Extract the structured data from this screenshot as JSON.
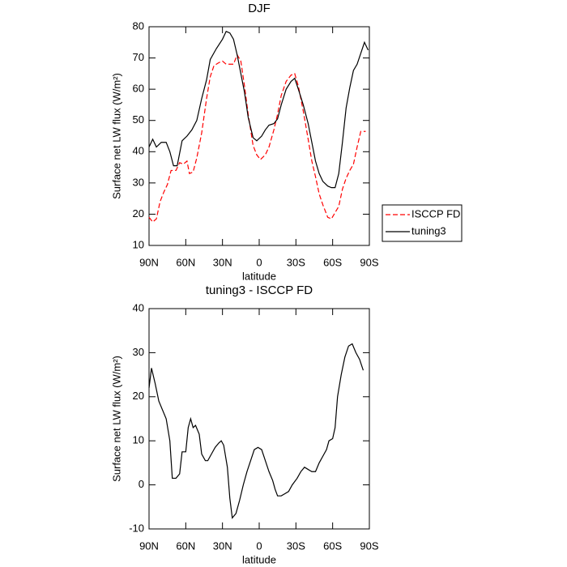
{
  "chart_data": [
    {
      "type": "line",
      "title": "DJF",
      "xlabel": "latitude",
      "ylabel": "Surface net LW flux (W/m²)",
      "xlim": [
        90,
        -90
      ],
      "xticks": [
        {
          "value": 90,
          "label": "90N"
        },
        {
          "value": 60,
          "label": "60N"
        },
        {
          "value": 30,
          "label": "30N"
        },
        0,
        {
          "value": -30,
          "label": "30S"
        },
        {
          "value": -60,
          "label": "60S"
        },
        {
          "value": -90,
          "label": "90S"
        }
      ],
      "ylim": [
        10,
        80
      ],
      "yticks": [
        10,
        20,
        30,
        40,
        50,
        60,
        70,
        80
      ],
      "legend": "right",
      "series": [
        {
          "name": "ISCCP FD",
          "color": "#ff0000",
          "style": "dashed",
          "x": [
            90,
            87,
            84,
            81,
            78,
            75,
            72,
            68,
            65,
            62,
            59,
            57,
            54,
            51,
            47,
            43,
            40,
            37,
            33,
            30,
            27,
            24,
            21,
            18,
            15,
            12,
            9,
            5,
            2,
            -1,
            -5,
            -8,
            -12,
            -15,
            -18,
            -22,
            -26,
            -29,
            -32,
            -36,
            -40,
            -43,
            -46,
            -49,
            -52,
            -56,
            -59,
            -62,
            -65,
            -68,
            -71,
            -74,
            -77,
            -80,
            -83,
            -87
          ],
          "values": [
            19,
            17.5,
            18.5,
            24,
            27,
            29.5,
            34,
            34,
            36.5,
            36,
            37,
            33,
            33.5,
            38,
            46,
            57,
            64,
            67.5,
            68.5,
            69,
            68,
            68,
            68,
            71,
            69,
            61,
            52,
            42,
            39,
            37.5,
            39,
            41.5,
            47,
            52,
            58,
            62.5,
            64.5,
            65,
            61,
            53,
            44,
            37,
            32,
            26.5,
            23,
            19,
            18.5,
            20.5,
            22.5,
            28,
            31.5,
            34,
            36,
            41.5,
            46.5,
            46.5
          ]
        },
        {
          "name": "tuning3",
          "color": "#000000",
          "style": "solid",
          "x": [
            90,
            87,
            84,
            80,
            76,
            73,
            70,
            67,
            63,
            59,
            55,
            51,
            47,
            43,
            40,
            35,
            30,
            27,
            24,
            21,
            18,
            15,
            12,
            9,
            5,
            2,
            -2,
            -5,
            -8,
            -12,
            -15,
            -18,
            -22,
            -26,
            -29,
            -32,
            -36,
            -40,
            -43,
            -46,
            -49,
            -52,
            -56,
            -59,
            -62,
            -65,
            -68,
            -71,
            -74,
            -77,
            -80,
            -83,
            -86,
            -89
          ],
          "values": [
            41.5,
            44,
            41.5,
            43,
            43,
            40,
            35.5,
            35.5,
            43.5,
            45,
            47,
            50,
            57,
            63,
            69.5,
            73,
            76,
            78.5,
            78,
            76,
            71,
            65,
            59,
            51,
            44.5,
            43.5,
            45,
            47,
            48.5,
            49,
            50.5,
            55,
            60,
            62.5,
            63.5,
            60,
            55,
            49,
            43,
            37,
            33,
            30.5,
            29,
            28.5,
            28.5,
            33,
            43,
            54,
            60.5,
            66,
            68,
            71.5,
            75,
            72.5
          ]
        }
      ]
    },
    {
      "type": "line",
      "title": "tuning3 - ISCCP FD",
      "xlabel": "latitude",
      "ylabel": "Surface net LW flux (W/m²)",
      "xlim": [
        90,
        -90
      ],
      "xticks": [
        {
          "value": 90,
          "label": "90N"
        },
        {
          "value": 60,
          "label": "60N"
        },
        {
          "value": 30,
          "label": "30N"
        },
        0,
        {
          "value": -30,
          "label": "30S"
        },
        {
          "value": -60,
          "label": "60S"
        },
        {
          "value": -90,
          "label": "90S"
        }
      ],
      "ylim": [
        -10,
        40
      ],
      "yticks": [
        -10,
        0,
        10,
        20,
        30,
        40
      ],
      "series": [
        {
          "color": "#000000",
          "style": "solid",
          "x": [
            90,
            88,
            85,
            82,
            79,
            76,
            73,
            71,
            68,
            65,
            63,
            60,
            58,
            56,
            54,
            52,
            49,
            47,
            44,
            42,
            39,
            36,
            33,
            31,
            29,
            26,
            24,
            22,
            19,
            16,
            13,
            10,
            7,
            4,
            1,
            -2,
            -5,
            -8,
            -11,
            -13,
            -15,
            -18,
            -21,
            -24,
            -27,
            -31,
            -34,
            -37,
            -40,
            -43,
            -46,
            -49,
            -52,
            -55,
            -57,
            -60,
            -62,
            -64,
            -67,
            -70,
            -73,
            -76,
            -79,
            -82,
            -85
          ],
          "values": [
            22,
            26.5,
            23,
            19,
            17,
            15,
            10,
            1.5,
            1.5,
            2.5,
            7.5,
            7.5,
            13,
            15,
            13,
            13.5,
            11.5,
            7,
            5.5,
            5.5,
            7,
            8.5,
            9.5,
            10,
            9,
            4,
            -3,
            -7.5,
            -6.5,
            -3.5,
            0,
            3,
            5.5,
            8,
            8.5,
            8,
            5.5,
            3,
            1,
            -1,
            -2.5,
            -2.5,
            -2,
            -1.5,
            0,
            1.5,
            3,
            4,
            3.5,
            3,
            3,
            5,
            6.5,
            8,
            10,
            10.5,
            13,
            20,
            25,
            29,
            31.5,
            32,
            30,
            28.5,
            26
          ]
        }
      ]
    }
  ]
}
